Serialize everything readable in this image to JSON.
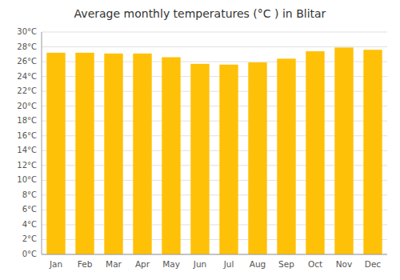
{
  "chart_data": {
    "type": "bar",
    "title": "Average monthly temperatures (°C ) in Blitar",
    "categories": [
      "Jan",
      "Feb",
      "Mar",
      "Apr",
      "May",
      "Jun",
      "Jul",
      "Aug",
      "Sep",
      "Oct",
      "Nov",
      "Dec"
    ],
    "values": [
      27.2,
      27.2,
      27.1,
      27.1,
      26.6,
      25.7,
      25.6,
      25.9,
      26.4,
      27.4,
      27.9,
      27.6
    ],
    "color": "#FFC107",
    "ylim": [
      0,
      30
    ],
    "yticks": [
      {
        "value": 0,
        "label": "0°C"
      },
      {
        "value": 2,
        "label": "2°C"
      },
      {
        "value": 4,
        "label": "4°C"
      },
      {
        "value": 6,
        "label": "6°C"
      },
      {
        "value": 8,
        "label": "8°C"
      },
      {
        "value": 10,
        "label": "10°C"
      },
      {
        "value": 12,
        "label": "12°C"
      },
      {
        "value": 14,
        "label": "14°C"
      },
      {
        "value": 16,
        "label": "16°C"
      },
      {
        "value": 18,
        "label": "18°C"
      },
      {
        "value": 20,
        "label": "20°C"
      },
      {
        "value": 22,
        "label": "22°C"
      },
      {
        "value": 24,
        "label": "24°C"
      },
      {
        "value": 26,
        "label": "26°C"
      },
      {
        "value": 28,
        "label": "28°C"
      },
      {
        "value": 30,
        "label": "30°C"
      }
    ],
    "grid": true
  }
}
